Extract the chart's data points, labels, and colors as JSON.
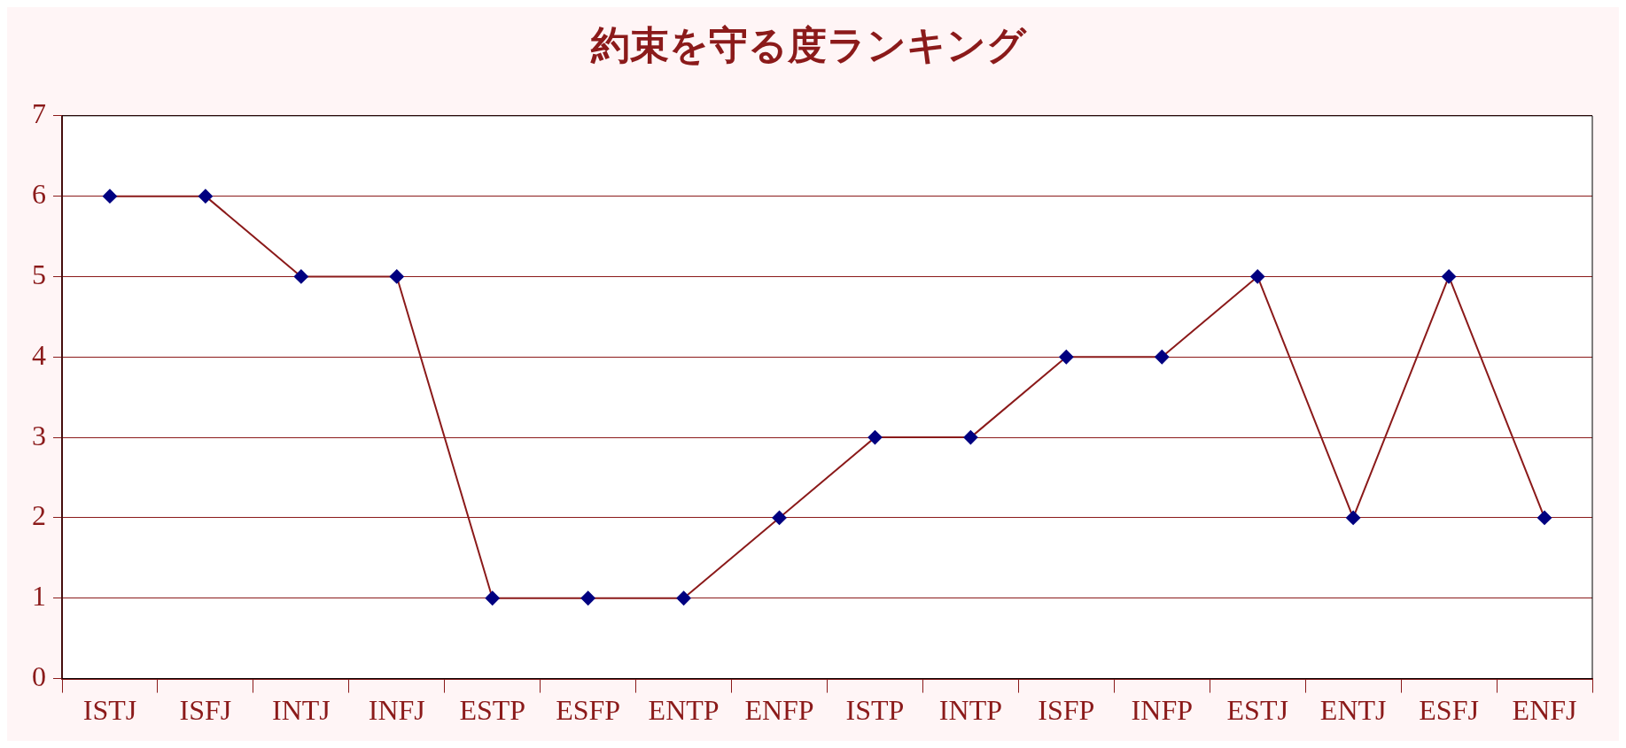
{
  "chart_data": {
    "type": "line",
    "title": "約束を守る度ランキング",
    "categories": [
      "ISTJ",
      "ISFJ",
      "INTJ",
      "INFJ",
      "ESTP",
      "ESFP",
      "ENTP",
      "ENFP",
      "ISTP",
      "INTP",
      "ISFP",
      "INFP",
      "ESTJ",
      "ENTJ",
      "ESFJ",
      "ENFJ"
    ],
    "series": [
      {
        "color": "#8b1a1a",
        "values": [
          6,
          6,
          5,
          5,
          1,
          1,
          1,
          2,
          3,
          3,
          4,
          4,
          5,
          2,
          5,
          2
        ]
      }
    ],
    "ylim": [
      0,
      7
    ],
    "yticks": [
      0,
      1,
      2,
      3,
      4,
      5,
      6,
      7
    ],
    "grid": "y",
    "marker": "diamond",
    "line_style": "solid",
    "legend": false
  }
}
